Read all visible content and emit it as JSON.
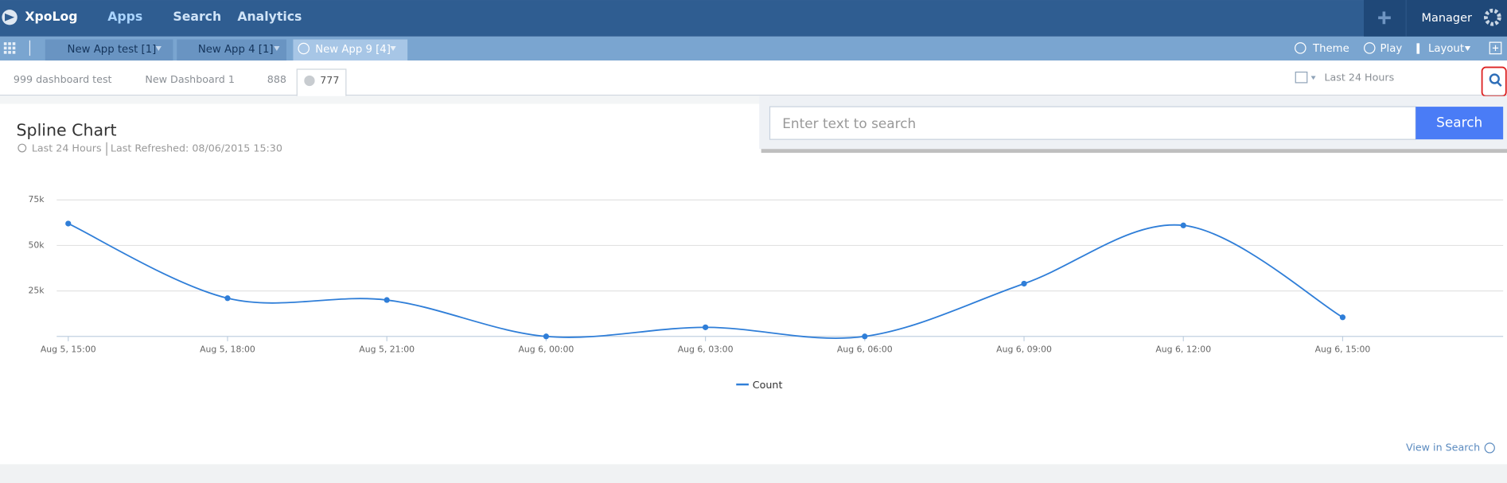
{
  "header": {
    "logo": "XpoLog",
    "nav": [
      "Apps",
      "Search",
      "Analytics"
    ],
    "user": "Manager"
  },
  "app_tabs": [
    "New App test [1]",
    "New App 4 [1]",
    "New App 9 [4]"
  ],
  "toolbar": [
    "Theme",
    "Play",
    "Layout"
  ],
  "dashboard_tabs": [
    "999 dashboard test",
    "New Dashboard 1",
    "888",
    "777"
  ],
  "time_range": "Last 24 Hours",
  "search": {
    "placeholder": "Enter text to search",
    "button": "Search"
  },
  "widget": {
    "title": "Spline Chart",
    "time_range": "Last 24 Hours",
    "last_refreshed": "Last Refreshed: 08/06/2015 15:30",
    "link": "View in Search"
  },
  "chart_data": {
    "type": "spline",
    "categories": [
      "Aug 5, 15:00",
      "Aug 5, 18:00",
      "Aug 5, 21:00",
      "Aug 6, 00:00",
      "Aug 6, 03:00",
      "Aug 6, 06:00",
      "Aug 6, 09:00",
      "Aug 6, 12:00",
      "Aug 6, 15:00"
    ],
    "series": [
      {
        "name": "Count",
        "color": "#2f7ed8",
        "values": [
          62000,
          21000,
          20000,
          0,
          5000,
          0,
          29000,
          61000,
          10500
        ]
      }
    ],
    "ylim": [
      0,
      75000
    ],
    "yticks": [
      {
        "value": 25000,
        "label": "25k"
      },
      {
        "value": 50000,
        "label": "50k"
      },
      {
        "value": 75000,
        "label": "75k"
      }
    ],
    "grid": true
  }
}
